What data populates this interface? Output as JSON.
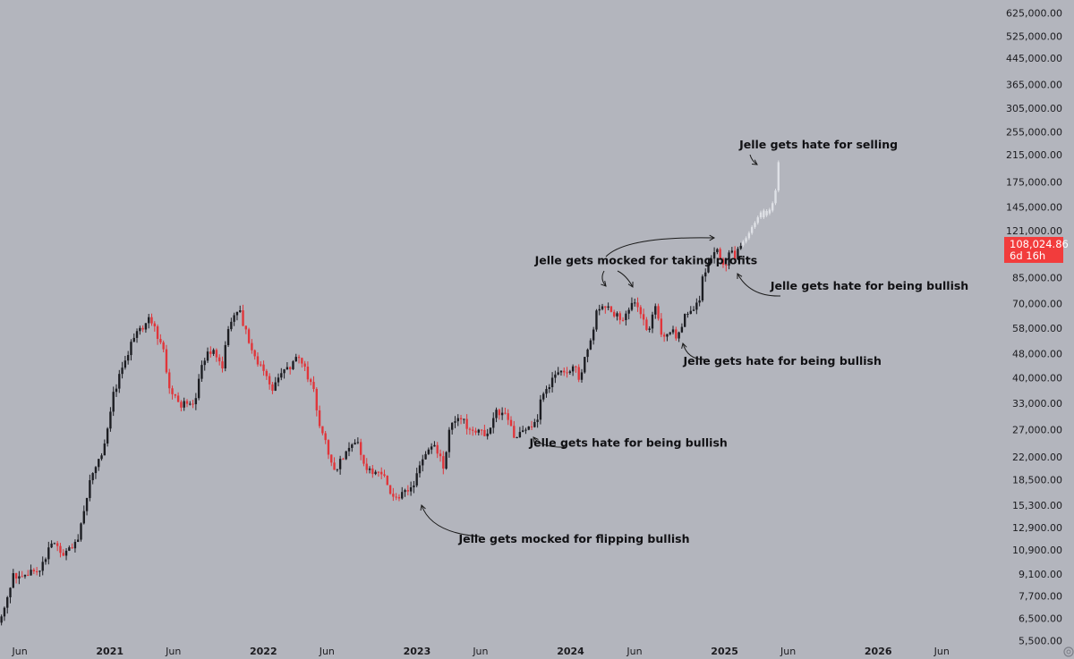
{
  "chart_data": {
    "type": "candlestick",
    "scale": "log",
    "grid": false,
    "y_axis_position": "right",
    "ylim": [
      5300,
      690000
    ],
    "y_ticks": [
      "625,000.00",
      "525,000.00",
      "445,000.00",
      "365,000.00",
      "305,000.00",
      "255,000.00",
      "215,000.00",
      "175,000.00",
      "145,000.00",
      "121,000.00",
      "85,000.00",
      "70,000.00",
      "58,000.00",
      "48,000.00",
      "40,000.00",
      "33,000.00",
      "27,000.00",
      "22,000.00",
      "18,500.00",
      "15,300.00",
      "12,900.00",
      "10,900.00",
      "9,100.00",
      "7,700.00",
      "6,500.00",
      "5,500.00"
    ],
    "x_ticks": [
      {
        "label": "Jun",
        "date": "2020-06-01",
        "bold": false
      },
      {
        "label": "2021",
        "date": "2021-01-01",
        "bold": true
      },
      {
        "label": "Jun",
        "date": "2021-06-01",
        "bold": false
      },
      {
        "label": "2022",
        "date": "2022-01-01",
        "bold": true
      },
      {
        "label": "Jun",
        "date": "2022-06-01",
        "bold": false
      },
      {
        "label": "2023",
        "date": "2023-01-01",
        "bold": true
      },
      {
        "label": "Jun",
        "date": "2023-06-01",
        "bold": false
      },
      {
        "label": "2024",
        "date": "2024-01-01",
        "bold": true
      },
      {
        "label": "Jun",
        "date": "2024-06-01",
        "bold": false
      },
      {
        "label": "2025",
        "date": "2025-01-01",
        "bold": true
      },
      {
        "label": "Jun",
        "date": "2025-06-01",
        "bold": false
      },
      {
        "label": "2026",
        "date": "2026-01-01",
        "bold": true
      },
      {
        "label": "Jun",
        "date": "2026-06-01",
        "bold": false
      }
    ],
    "xlim": [
      "2020-04-15",
      "2026-08-31"
    ],
    "price_label": {
      "value": "108,024.86",
      "countdown": "6d 16h"
    },
    "anchors": [
      [
        "2020-04-15",
        6300
      ],
      [
        "2020-05-20",
        9000
      ],
      [
        "2020-07-20",
        9200
      ],
      [
        "2020-08-20",
        11700
      ],
      [
        "2020-09-20",
        10500
      ],
      [
        "2020-10-20",
        12000
      ],
      [
        "2020-11-20",
        18500
      ],
      [
        "2020-12-20",
        23500
      ],
      [
        "2021-01-15",
        36000
      ],
      [
        "2021-02-10",
        47000
      ],
      [
        "2021-03-15",
        58000
      ],
      [
        "2021-04-14",
        62000
      ],
      [
        "2021-05-15",
        47000
      ],
      [
        "2021-05-25",
        37000
      ],
      [
        "2021-06-20",
        33000
      ],
      [
        "2021-07-20",
        31500
      ],
      [
        "2021-08-15",
        46000
      ],
      [
        "2021-09-05",
        50000
      ],
      [
        "2021-09-28",
        43000
      ],
      [
        "2021-10-20",
        63000
      ],
      [
        "2021-11-10",
        66000
      ],
      [
        "2021-12-05",
        49000
      ],
      [
        "2022-01-05",
        43000
      ],
      [
        "2022-01-24",
        35000
      ],
      [
        "2022-02-15",
        42000
      ],
      [
        "2022-03-30",
        46000
      ],
      [
        "2022-04-30",
        38000
      ],
      [
        "2022-05-15",
        29500
      ],
      [
        "2022-06-18",
        19800
      ],
      [
        "2022-07-30",
        23300
      ],
      [
        "2022-08-15",
        24300
      ],
      [
        "2022-09-10",
        20000
      ],
      [
        "2022-10-15",
        19200
      ],
      [
        "2022-11-09",
        16500
      ],
      [
        "2022-12-20",
        16800
      ],
      [
        "2023-01-20",
        22500
      ],
      [
        "2023-02-15",
        24000
      ],
      [
        "2023-03-10",
        20500
      ],
      [
        "2023-03-25",
        28000
      ],
      [
        "2023-04-15",
        29800
      ],
      [
        "2023-05-15",
        27000
      ],
      [
        "2023-06-15",
        26000
      ],
      [
        "2023-07-10",
        30500
      ],
      [
        "2023-08-10",
        29300
      ],
      [
        "2023-08-20",
        26000
      ],
      [
        "2023-09-15",
        26500
      ],
      [
        "2023-10-15",
        28500
      ],
      [
        "2023-10-28",
        34500
      ],
      [
        "2023-12-05",
        42000
      ],
      [
        "2024-01-15",
        42500
      ],
      [
        "2024-01-25",
        40000
      ],
      [
        "2024-02-20",
        51500
      ],
      [
        "2024-03-10",
        68000
      ],
      [
        "2024-03-25",
        70000
      ],
      [
        "2024-04-20",
        64500
      ],
      [
        "2024-05-10",
        61500
      ],
      [
        "2024-05-25",
        68500
      ],
      [
        "2024-06-10",
        69000
      ],
      [
        "2024-07-05",
        56500
      ],
      [
        "2024-07-25",
        67500
      ],
      [
        "2024-08-05",
        55000
      ],
      [
        "2024-09-01",
        58000
      ],
      [
        "2024-09-08",
        54000
      ],
      [
        "2024-10-01",
        63000
      ],
      [
        "2024-10-20",
        68000
      ],
      [
        "2024-11-05",
        69500
      ],
      [
        "2024-11-15",
        89000
      ],
      [
        "2024-12-01",
        97000
      ],
      [
        "2024-12-17",
        106000
      ],
      [
        "2025-01-05",
        94000
      ],
      [
        "2025-01-20",
        103000
      ],
      [
        "2025-01-28",
        98000
      ],
      [
        "2025-02-07",
        108024
      ]
    ],
    "projection": [
      {
        "date": "2025-02-14",
        "open": 108500,
        "close": 111500
      },
      {
        "date": "2025-02-21",
        "open": 111500,
        "close": 114500
      },
      {
        "date": "2025-02-28",
        "open": 114500,
        "close": 119000
      },
      {
        "date": "2025-03-07",
        "open": 119000,
        "close": 124500
      },
      {
        "date": "2025-03-14",
        "open": 124500,
        "close": 128500
      },
      {
        "date": "2025-03-21",
        "open": 128500,
        "close": 134000
      },
      {
        "date": "2025-03-28",
        "open": 134000,
        "close": 139000
      },
      {
        "date": "2025-04-04",
        "open": 134000,
        "close": 141000
      },
      {
        "date": "2025-04-11",
        "open": 136000,
        "close": 140500
      },
      {
        "date": "2025-04-18",
        "open": 138000,
        "close": 142000
      },
      {
        "date": "2025-04-25",
        "open": 141000,
        "close": 149000
      },
      {
        "date": "2025-05-02",
        "open": 149000,
        "close": 164000
      },
      {
        "date": "2025-05-09",
        "open": 164000,
        "close": 203000
      }
    ],
    "annotations": [
      {
        "text": "Jelle gets hate for selling",
        "x_date": "2025-02-05",
        "y": 225000
      },
      {
        "text": "Jelle gets mocked for taking profits",
        "x_date": "2023-10-08",
        "y": 94000
      },
      {
        "text": "Jelle gets hate for being bullish",
        "x_date": "2025-04-20",
        "y": 77500
      },
      {
        "text": "Jelle gets hate for being bullish",
        "x_date": "2024-09-25",
        "y": 44000
      },
      {
        "text": "Jelle gets hate for being bullish",
        "x_date": "2023-09-25",
        "y": 23800
      },
      {
        "text": "Jelle gets mocked for flipping bullish",
        "x_date": "2023-04-10",
        "y": 11500
      }
    ],
    "colors": {
      "up": "#1c1d22",
      "down": "#e0353a",
      "projection": "#dfe1e6",
      "price_tag": "#f23c3c",
      "background": "#b3b5bd"
    }
  }
}
